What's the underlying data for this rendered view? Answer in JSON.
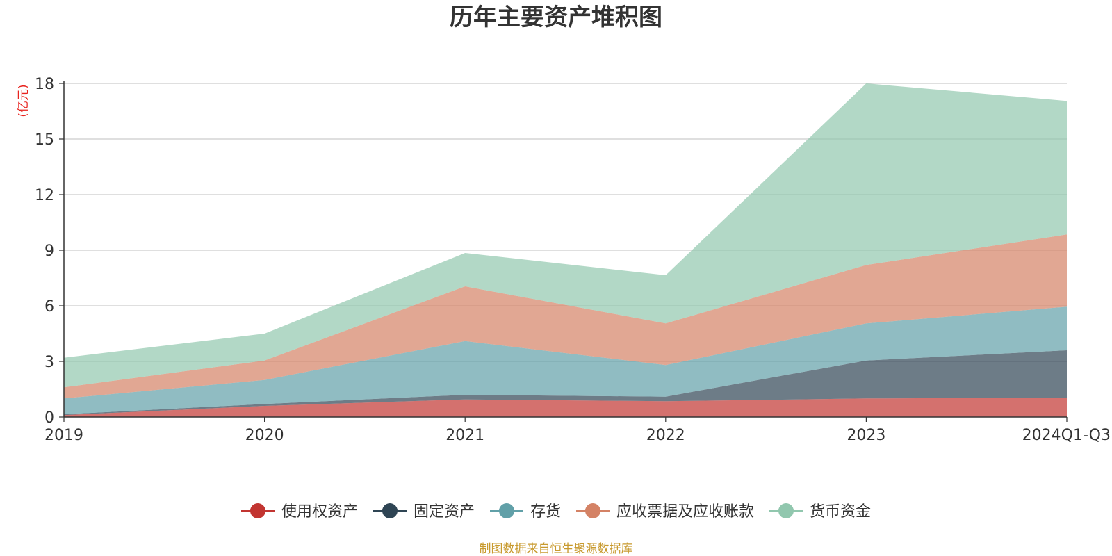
{
  "chart_data": {
    "type": "area",
    "stacked": true,
    "title": "历年主要资产堆积图",
    "ylabel": "(亿元)",
    "xlabel": "",
    "categories": [
      "2019",
      "2020",
      "2021",
      "2022",
      "2023",
      "2024Q1-Q3"
    ],
    "ylim": [
      0,
      18
    ],
    "yticks": [
      "0",
      "3",
      "6",
      "9",
      "12",
      "15",
      "18"
    ],
    "grid": true,
    "legend_position": "bottom",
    "series": [
      {
        "name": "使用权资产",
        "color": "#c23531",
        "values": [
          0.1,
          0.6,
          0.95,
          0.85,
          1.0,
          1.05
        ]
      },
      {
        "name": "固定资产",
        "color": "#2f4554",
        "values": [
          0.05,
          0.1,
          0.25,
          0.25,
          2.05,
          2.55
        ]
      },
      {
        "name": "存货",
        "color": "#61a0a8",
        "values": [
          0.85,
          1.3,
          2.9,
          1.7,
          2.0,
          2.35
        ]
      },
      {
        "name": "应收票据及应收账款",
        "color": "#d48265",
        "values": [
          0.6,
          1.05,
          2.95,
          2.25,
          3.15,
          3.9
        ]
      },
      {
        "name": "货币资金",
        "color": "#91c7ae",
        "values": [
          1.6,
          1.45,
          1.8,
          2.6,
          9.8,
          7.2
        ]
      }
    ],
    "source_note": "制图数据来自恒生聚源数据库"
  }
}
